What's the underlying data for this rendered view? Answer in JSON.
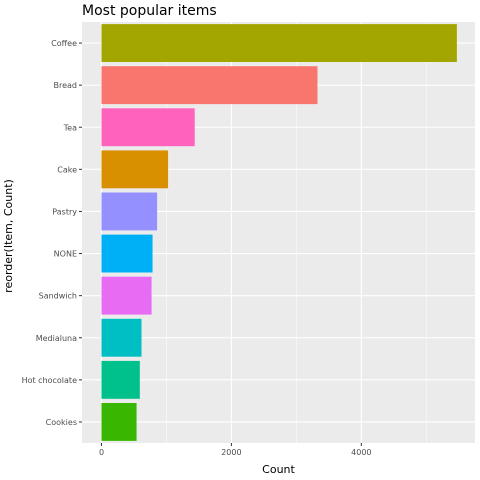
{
  "chart_data": {
    "type": "bar",
    "orientation": "horizontal",
    "title": "Most popular items",
    "xlabel": "Count",
    "ylabel": "reorder(Item, Count)",
    "categories": [
      "Coffee",
      "Bread",
      "Tea",
      "Cake",
      "Pastry",
      "NONE",
      "Sandwich",
      "Medialuna",
      "Hot chocolate",
      "Cookies"
    ],
    "values": [
      5471,
      3325,
      1435,
      1025,
      856,
      786,
      771,
      616,
      590,
      540
    ],
    "colors": [
      "#A3A500",
      "#F8766D",
      "#FF62BC",
      "#D89000",
      "#9590FF",
      "#00B0F6",
      "#E76BF3",
      "#00BFC4",
      "#00C08B",
      "#39B600"
    ],
    "xlim": [
      -300,
      5750
    ],
    "x_ticks": [
      0,
      2000,
      4000
    ],
    "x_tick_labels": [
      "0",
      "2000",
      "4000"
    ],
    "grid": true,
    "panel_background": "#EBEBEB",
    "grid_color": "#FFFFFF",
    "legend": "none"
  }
}
